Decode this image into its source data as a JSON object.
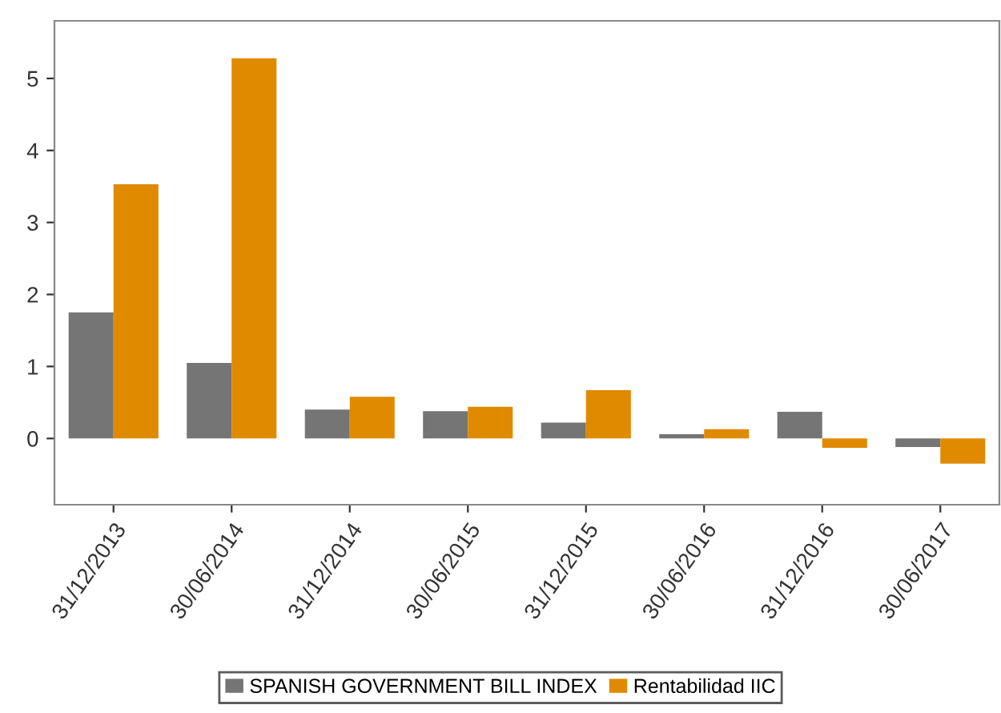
{
  "chart_data": {
    "type": "bar",
    "categories": [
      "31/12/2013",
      "30/06/2014",
      "31/12/2014",
      "30/06/2015",
      "31/12/2015",
      "30/06/2016",
      "31/12/2016",
      "30/06/2017"
    ],
    "series": [
      {
        "name": "SPANISH GOVERNMENT BILL INDEX",
        "color": "#757575",
        "values": [
          1.75,
          1.05,
          0.4,
          0.38,
          0.22,
          0.06,
          0.37,
          -0.12
        ]
      },
      {
        "name": "Rentabilidad IIC",
        "color": "#e08a00",
        "values": [
          3.53,
          5.28,
          0.58,
          0.44,
          0.67,
          0.13,
          -0.13,
          -0.35
        ]
      }
    ],
    "ylim": [
      -0.92,
      5.8
    ],
    "yticks": [
      0,
      1,
      2,
      3,
      4,
      5
    ],
    "grid": false,
    "legend": "bottom"
  }
}
